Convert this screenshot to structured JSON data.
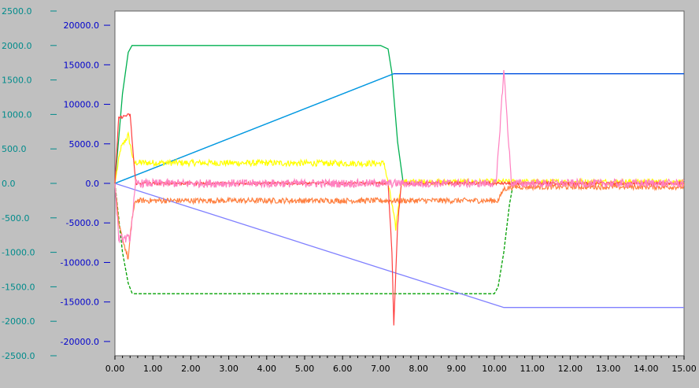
{
  "chart_data": {
    "type": "line",
    "title": "",
    "xlabel": "",
    "ylabel": "",
    "x_ticks": [
      "0.00",
      "1.00",
      "2.00",
      "3.00",
      "4.00",
      "5.00",
      "6.00",
      "7.00",
      "8.00",
      "9.00",
      "10.00",
      "11.00",
      "12.00",
      "13.00",
      "14.00",
      "15.00"
    ],
    "xlim": [
      0,
      15
    ],
    "left_axis": {
      "ylim": [
        -2500,
        2500
      ],
      "color": "#008b8b",
      "ticks": [
        "2500.0",
        "2000.0",
        "1500.0",
        "1000.0",
        "500.0",
        "0.0",
        "-500.0",
        "-1000.0",
        "-1500.0",
        "-2000.0",
        "-2500.0"
      ],
      "tick_values": [
        2500,
        2000,
        1500,
        1000,
        500,
        0,
        -500,
        -1000,
        -1500,
        -2000,
        -2500
      ]
    },
    "right_axis": {
      "ylim": [
        -21800,
        21800
      ],
      "color": "#0000cc",
      "ticks": [
        "20000.0",
        "15000.0",
        "10000.0",
        "5000.0",
        "0.0",
        "-5000.0",
        "-10000.0",
        "-15000.0",
        "-20000.0"
      ],
      "tick_values": [
        20000,
        15000,
        10000,
        5000,
        0,
        -5000,
        -10000,
        -15000,
        -20000
      ]
    },
    "grid": false,
    "legend": "none",
    "series": [
      {
        "color": "#00b050",
        "axis": "left",
        "style": "solid",
        "x": [
          0.0,
          0.2,
          0.35,
          0.45,
          0.5,
          7.0,
          7.2,
          7.3,
          7.45,
          7.6
        ],
        "y": [
          0,
          1300,
          1900,
          2000,
          2000,
          2000,
          1950,
          1600,
          600,
          0
        ]
      },
      {
        "color": "#00a000",
        "axis": "left",
        "style": "dashed",
        "x": [
          0.0,
          0.2,
          0.35,
          0.45,
          0.5,
          10.0,
          10.1,
          10.25,
          10.4,
          10.5
        ],
        "y": [
          0,
          -1000,
          -1450,
          -1590,
          -1600,
          -1600,
          -1500,
          -1000,
          -300,
          0
        ]
      },
      {
        "color": "#0050e0",
        "axis": "left",
        "style": "solid",
        "x": [
          0.0,
          7.35,
          15.0
        ],
        "y": [
          0,
          1590,
          1590
        ]
      },
      {
        "color": "#00a0e0",
        "axis": "left",
        "style": "solid",
        "x": [
          0.0,
          7.35
        ],
        "y": [
          0,
          1590
        ]
      },
      {
        "color": "#8080ff",
        "axis": "left",
        "style": "solid",
        "x": [
          0.0,
          10.25,
          15.0
        ],
        "y": [
          0,
          -1800,
          -1800
        ]
      },
      {
        "color": "#ffff00",
        "axis": "left",
        "style": "solid",
        "noise": 45,
        "x": [
          0.0,
          0.15,
          0.35,
          0.5,
          7.1,
          7.3,
          7.4,
          7.55,
          15.0
        ],
        "y": [
          0,
          500,
          700,
          300,
          290,
          -300,
          -650,
          20,
          20
        ]
      },
      {
        "color": "#ff8040",
        "axis": "left",
        "style": "solid",
        "noise": 40,
        "x": [
          0.0,
          0.1,
          0.35,
          0.45,
          0.55,
          10.1,
          10.25,
          10.5,
          15.0
        ],
        "y": [
          0,
          -600,
          -1100,
          -500,
          -250,
          -250,
          -80,
          -50,
          -50
        ]
      },
      {
        "color": "#ff4040",
        "axis": "left",
        "style": "solid",
        "noise": 20,
        "x": [
          0.0,
          0.1,
          0.4,
          0.5,
          0.55,
          7.2,
          7.3,
          7.35,
          7.45,
          7.55,
          15.0
        ],
        "y": [
          0,
          950,
          1000,
          300,
          0,
          0,
          -1000,
          -2050,
          -600,
          0,
          0
        ]
      },
      {
        "color": "#ff80c0",
        "axis": "left",
        "style": "solid",
        "noise": 60,
        "x": [
          0.0,
          0.1,
          0.4,
          0.55,
          7.3,
          7.5,
          10.05,
          10.25,
          10.45,
          15.0
        ],
        "y": [
          0,
          -800,
          -800,
          0,
          0,
          0,
          0,
          1640,
          0,
          0
        ]
      }
    ]
  }
}
